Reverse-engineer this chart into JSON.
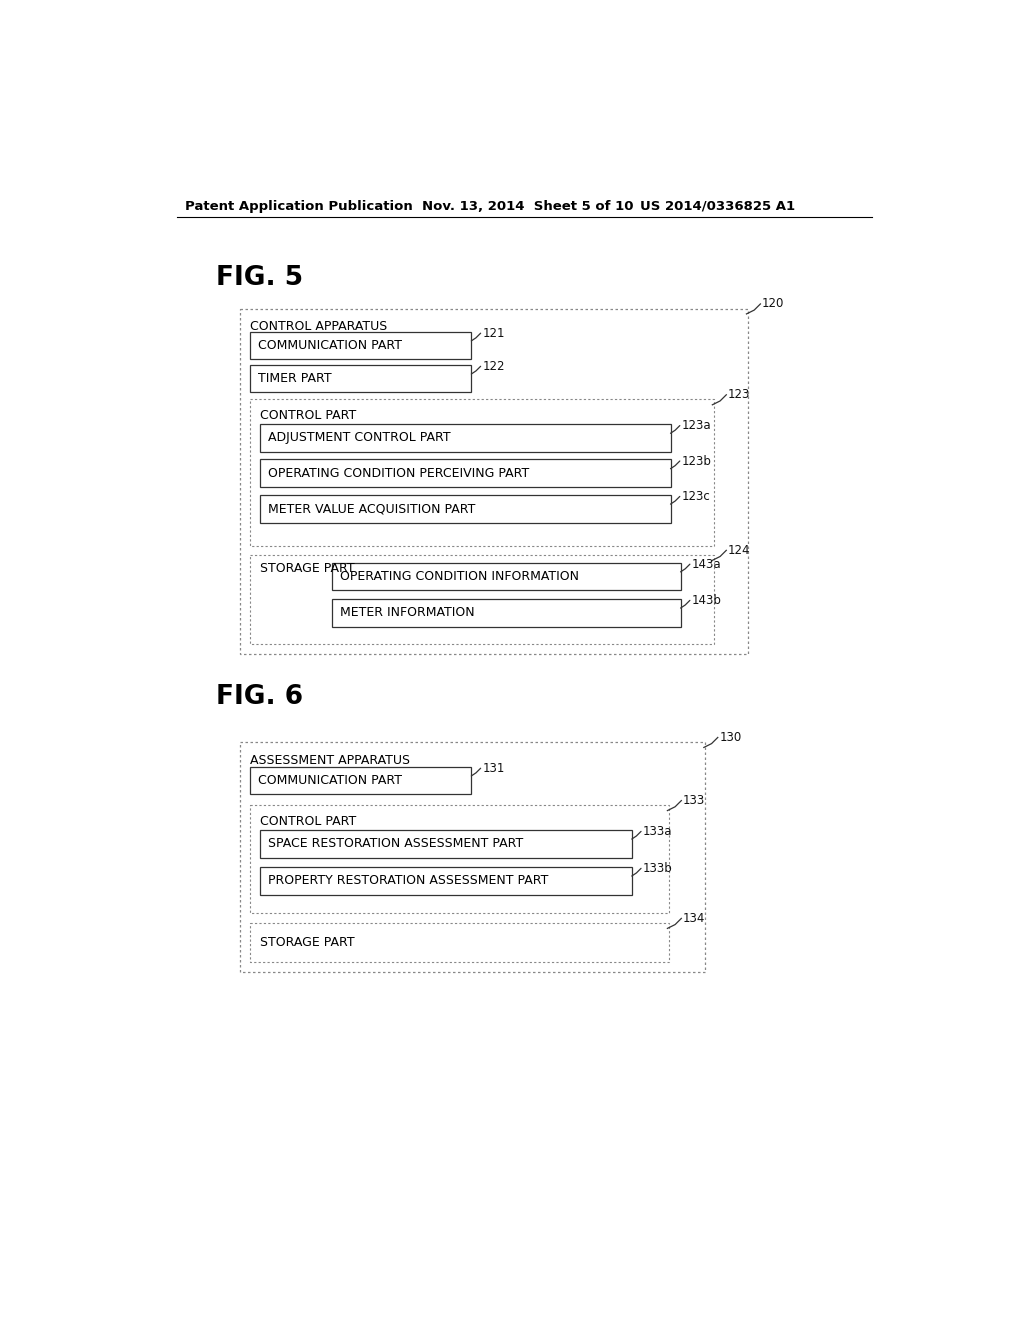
{
  "bg_color": "#ffffff",
  "header_text": "Patent Application Publication",
  "header_date": "Nov. 13, 2014  Sheet 5 of 10",
  "header_patent": "US 2014/0336825 A1",
  "fig5_label": "FIG. 5",
  "fig6_label": "FIG. 6",
  "text_color": "#000000",
  "line_color": "#000000",
  "fig5": {
    "outer_label": "120",
    "title_text": "CONTROL APPARATUS",
    "comm_box_label": "121",
    "comm_box_text": "COMMUNICATION PART",
    "timer_box_label": "122",
    "timer_box_text": "TIMER PART",
    "control_part_label": "123",
    "control_part_text": "CONTROL PART",
    "adj_box_label": "123a",
    "adj_box_text": "ADJUSTMENT CONTROL PART",
    "op_box_label": "123b",
    "op_box_text": "OPERATING CONDITION PERCEIVING PART",
    "meter_box_label": "123c",
    "meter_box_text": "METER VALUE ACQUISITION PART",
    "storage_label": "124",
    "storage_text": "STORAGE PART",
    "op_info_label": "143a",
    "op_info_text": "OPERATING CONDITION INFORMATION",
    "meter_info_label": "143b",
    "meter_info_text": "METER INFORMATION"
  },
  "fig6": {
    "outer_label": "130",
    "title_text": "ASSESSMENT APPARATUS",
    "comm_box_label": "131",
    "comm_box_text": "COMMUNICATION PART",
    "control_part_label": "133",
    "control_part_text": "CONTROL PART",
    "space_box_label": "133a",
    "space_box_text": "SPACE RESTORATION ASSESSMENT PART",
    "prop_box_label": "133b",
    "prop_box_text": "PROPERTY RESTORATION ASSESSMENT PART",
    "storage_label": "134",
    "storage_text": "STORAGE PART"
  }
}
